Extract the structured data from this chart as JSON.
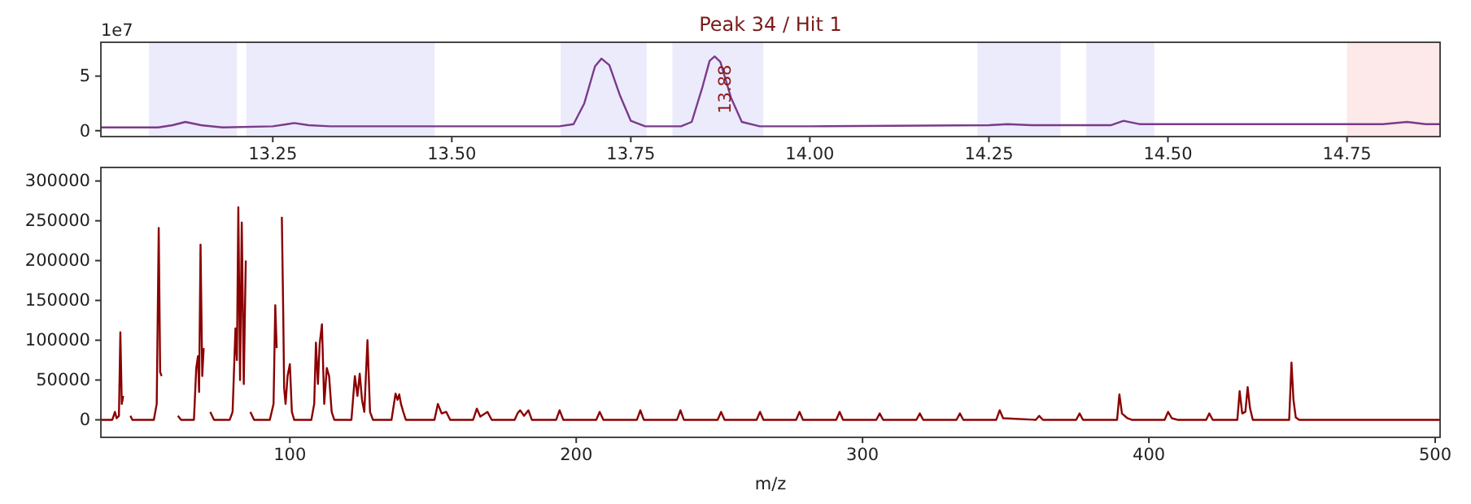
{
  "chart_data": [
    {
      "type": "line",
      "title": "Peak 34 / Hit 1",
      "xlim": [
        13.01,
        14.88
      ],
      "ylim": [
        -0.54,
        8.1
      ],
      "xticks": [
        {
          "value": 13.25,
          "label": "13.25"
        },
        {
          "value": 13.5,
          "label": "13.50"
        },
        {
          "value": 13.75,
          "label": "13.75"
        },
        {
          "value": 14,
          "label": "14.00"
        },
        {
          "value": 14.25,
          "label": "14.25"
        },
        {
          "value": 14.5,
          "label": "14.50"
        },
        {
          "value": 14.75,
          "label": "14.75"
        }
      ],
      "yticks": [
        0,
        5
      ],
      "annotations": [
        "1e7",
        {
          "text": "13.88",
          "x": 13.88,
          "y": 3.8
        }
      ],
      "bands": [
        {
          "axis": "x",
          "from": 13.077,
          "to": 13.2,
          "color": "#ebebfc"
        },
        {
          "axis": "x",
          "from": 13.213,
          "to": 13.476,
          "color": "#ebebfc"
        },
        {
          "axis": "x",
          "from": 13.652,
          "to": 13.772,
          "color": "#ebebfc"
        },
        {
          "axis": "x",
          "from": 13.808,
          "to": 13.935,
          "color": "#ebebfc"
        },
        {
          "axis": "x",
          "from": 14.234,
          "to": 14.35,
          "color": "#ebebfc"
        },
        {
          "axis": "x",
          "from": 14.386,
          "to": 14.481,
          "color": "#ebebfc"
        },
        {
          "axis": "x",
          "from": 14.75,
          "to": 14.88,
          "color": "#fde9e9"
        }
      ],
      "series": [
        {
          "color": "#7b3a8a",
          "x": [
            13.01,
            13.09,
            13.11,
            13.128,
            13.15,
            13.18,
            13.25,
            13.27,
            13.28,
            13.3,
            13.33,
            13.5,
            13.65,
            13.67,
            13.685,
            13.7,
            13.709,
            13.72,
            13.735,
            13.75,
            13.77,
            13.82,
            13.835,
            13.85,
            13.86,
            13.867,
            13.875,
            13.89,
            13.905,
            13.93,
            14.0,
            14.25,
            14.276,
            14.31,
            14.42,
            14.438,
            14.46,
            14.8,
            14.834,
            14.86,
            14.88
          ],
          "values": [
            0.3,
            0.3,
            0.5,
            0.8,
            0.5,
            0.3,
            0.4,
            0.6,
            0.7,
            0.5,
            0.4,
            0.4,
            0.4,
            0.6,
            2.5,
            5.9,
            6.6,
            6.0,
            3.2,
            0.9,
            0.4,
            0.4,
            0.8,
            4,
            6.4,
            6.8,
            6.3,
            3.0,
            0.8,
            0.4,
            0.4,
            0.5,
            0.6,
            0.5,
            0.5,
            0.9,
            0.6,
            0.6,
            0.8,
            0.6,
            0.6
          ]
        }
      ]
    },
    {
      "type": "line",
      "xlabel": "m/z",
      "xlim": [
        34,
        501.7
      ],
      "ylim": [
        -22000,
        317000
      ],
      "xticks": [
        100,
        200,
        300,
        400,
        500
      ],
      "yticks": [
        0,
        50000,
        100000,
        150000,
        200000,
        250000,
        300000
      ],
      "series": [
        {
          "color": "#8b0000",
          "x": [
            34,
            38,
            38.9,
            39.5,
            40.3,
            40.8,
            41.3,
            41.8,
            42.3,
            43.8,
            44.3,
            45,
            52.5,
            53.5,
            54.2,
            54.7,
            55.2,
            57.5,
            60.9,
            62,
            66.5,
            67.3,
            67.9,
            68.3,
            68.8,
            69.4,
            69.9,
            70.3,
            71.6,
            72.2,
            73.5,
            79,
            80,
            81,
            81.5,
            82,
            82.6,
            83.2,
            83.9,
            84.6,
            84.9,
            85.6,
            86.2,
            87.5,
            93,
            94.3,
            94.9,
            95.4,
            95.8,
            96.8,
            97.2,
            97.7,
            98,
            98.5,
            99.2,
            100,
            100.7,
            101.5,
            107.5,
            108.5,
            109.1,
            109.8,
            110.4,
            111.2,
            112,
            112.9,
            113.7,
            114.6,
            115.5,
            121.5,
            122.7,
            123.6,
            124.4,
            125.2,
            126,
            127.1,
            128,
            129,
            135.5,
            136.9,
            137.6,
            138.2,
            138.8,
            139.6,
            140.5,
            150.5,
            151.7,
            153,
            154.6,
            156,
            164,
            165.3,
            166.5,
            169,
            170.5,
            178.5,
            179.5,
            180.4,
            181.8,
            183.3,
            184.5,
            193,
            194.2,
            195.5,
            207,
            208.2,
            209.5,
            221.2,
            222.4,
            223.6,
            235.2,
            236.4,
            237.6,
            249.4,
            250.6,
            251.8,
            263,
            264.2,
            265.4,
            276.8,
            278,
            279.2,
            290.8,
            292,
            293.2,
            304.8,
            306,
            307.2,
            318.8,
            320,
            321.2,
            332.8,
            334,
            335.2,
            346.7,
            347.9,
            349.1,
            360.5,
            361.7,
            363,
            374.6,
            375.8,
            377,
            388.9,
            389.7,
            390.6,
            392.5,
            394,
            405.5,
            406.7,
            408,
            410,
            420,
            421.1,
            422.3,
            430.9,
            431.7,
            432.6,
            433.7,
            434.5,
            435.3,
            436.3,
            449,
            449.8,
            450.5,
            451.3,
            452.5,
            501.7
          ],
          "values": [
            0,
            0,
            10000,
            2000,
            5000,
            110000,
            20000,
            30000,
            null,
            null,
            5000,
            0,
            0,
            20000,
            241000,
            60000,
            55000,
            null,
            5000,
            0,
            0,
            65000,
            80000,
            35000,
            220000,
            55000,
            90000,
            null,
            null,
            10000,
            0,
            0,
            10000,
            115000,
            75000,
            267000,
            50000,
            248000,
            45000,
            200000,
            null,
            null,
            10000,
            0,
            0,
            20000,
            144000,
            90000,
            null,
            null,
            255000,
            130000,
            40000,
            20000,
            55000,
            70000,
            10000,
            0,
            0,
            20000,
            97000,
            45000,
            95000,
            120000,
            20000,
            65000,
            55000,
            10000,
            0,
            0,
            55000,
            30000,
            58000,
            25000,
            10000,
            100000,
            10000,
            0,
            0,
            33000,
            25000,
            32000,
            20000,
            10000,
            0,
            0,
            20000,
            8000,
            10000,
            0,
            0,
            14000,
            4000,
            10000,
            0,
            0,
            8000,
            12000,
            5000,
            12000,
            0,
            0,
            12000,
            0,
            0,
            10000,
            0,
            0,
            12000,
            0,
            0,
            12000,
            0,
            0,
            10000,
            0,
            0,
            10000,
            0,
            0,
            10000,
            0,
            0,
            10000,
            0,
            0,
            8000,
            0,
            0,
            8000,
            0,
            0,
            8000,
            0,
            0,
            12000,
            2000,
            0,
            5000,
            0,
            0,
            8000,
            0,
            0,
            32000,
            8000,
            2000,
            0,
            0,
            10000,
            2000,
            0,
            0,
            8000,
            0,
            0,
            36000,
            8000,
            10000,
            41000,
            15000,
            0,
            0,
            72000,
            25000,
            3000,
            0,
            0
          ]
        }
      ]
    }
  ]
}
